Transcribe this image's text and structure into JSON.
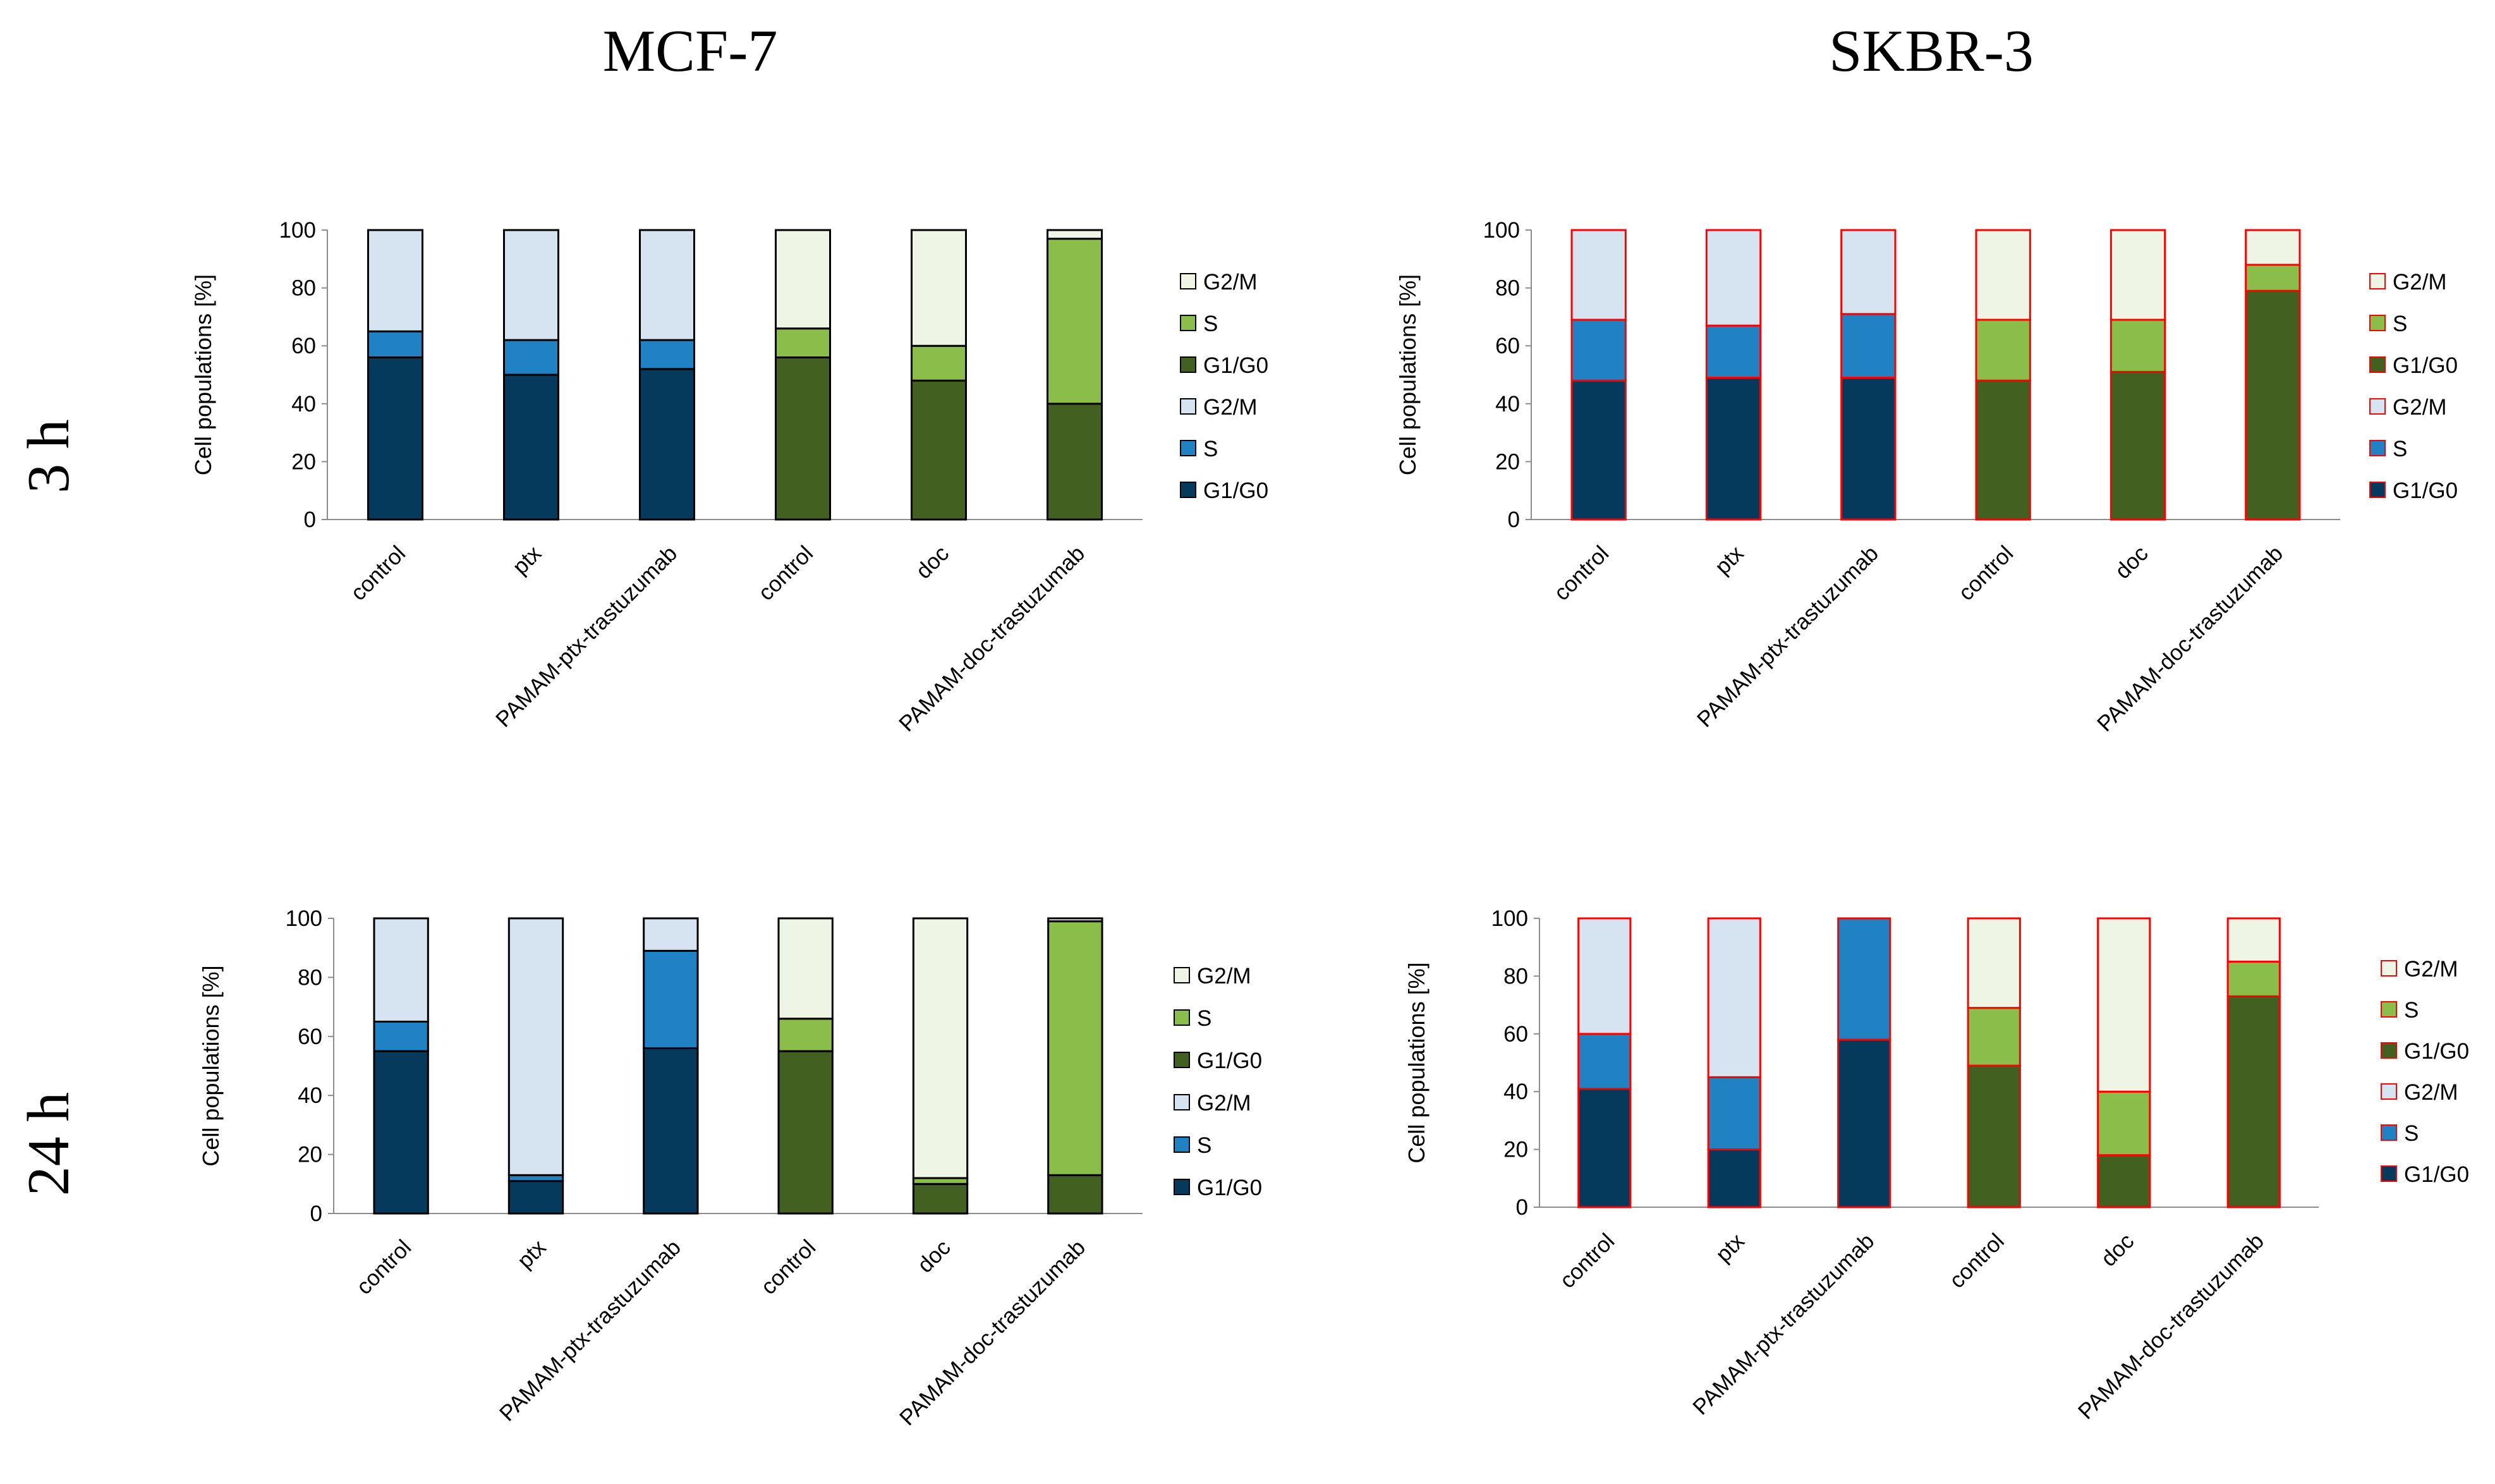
{
  "column_titles": [
    "MCF-7",
    "SKBR-3"
  ],
  "row_titles": [
    "3 h",
    "24 h"
  ],
  "colors": {
    "ptx": {
      "G1/G0": "#063a5c",
      "S": "#2081c3",
      "G2/M": "#d6e4f1"
    },
    "doc": {
      "G1/G0": "#426120",
      "S": "#8bbd4a",
      "G2/M": "#eef5e4"
    },
    "stroke_mcf7": "#000000",
    "stroke_skbr3": "#ff0000"
  },
  "chart_data": [
    {
      "type": "bar",
      "stacked": true,
      "cell_line": "MCF-7",
      "time": "3 h",
      "ylabel": "Cell populations [%]",
      "ylim": [
        0,
        100
      ],
      "yticks": [
        0,
        20,
        40,
        60,
        80,
        100
      ],
      "categories": [
        "control",
        "ptx",
        "PAMAM-ptx-trastuzumab",
        "control",
        "doc",
        "PAMAM-doc-trastuzumab"
      ],
      "bar_groups": [
        "ptx",
        "ptx",
        "ptx",
        "doc",
        "doc",
        "doc"
      ],
      "series": [
        {
          "name": "G1/G0",
          "values": [
            56,
            50,
            52,
            56,
            48,
            40
          ]
        },
        {
          "name": "S",
          "values": [
            9,
            12,
            10,
            10,
            12,
            57
          ]
        },
        {
          "name": "G2/M",
          "values": [
            35,
            38,
            38,
            34,
            40,
            3
          ]
        }
      ],
      "legend": [
        {
          "label": "G2/M",
          "group": "doc",
          "series": "G2/M"
        },
        {
          "label": "S",
          "group": "doc",
          "series": "S"
        },
        {
          "label": "G1/G0",
          "group": "doc",
          "series": "G1/G0"
        },
        {
          "label": "G2/M",
          "group": "ptx",
          "series": "G2/M"
        },
        {
          "label": "S",
          "group": "ptx",
          "series": "S"
        },
        {
          "label": "G1/G0",
          "group": "ptx",
          "series": "G1/G0"
        }
      ]
    },
    {
      "type": "bar",
      "stacked": true,
      "cell_line": "SKBR-3",
      "time": "3 h",
      "ylabel": "Cell populations [%]",
      "ylim": [
        0,
        100
      ],
      "yticks": [
        0,
        20,
        40,
        60,
        80,
        100
      ],
      "categories": [
        "control",
        "ptx",
        "PAMAM-ptx-trastuzumab",
        "control",
        "doc",
        "PAMAM-doc-trastuzumab"
      ],
      "bar_groups": [
        "ptx",
        "ptx",
        "ptx",
        "doc",
        "doc",
        "doc"
      ],
      "series": [
        {
          "name": "G1/G0",
          "values": [
            48,
            49,
            49,
            48,
            51,
            79
          ]
        },
        {
          "name": "S",
          "values": [
            21,
            18,
            22,
            21,
            18,
            9
          ]
        },
        {
          "name": "G2/M",
          "values": [
            31,
            33,
            29,
            31,
            31,
            12
          ]
        }
      ],
      "legend": [
        {
          "label": "G2/M",
          "group": "doc",
          "series": "G2/M"
        },
        {
          "label": "S",
          "group": "doc",
          "series": "S"
        },
        {
          "label": "G1/G0",
          "group": "doc",
          "series": "G1/G0"
        },
        {
          "label": "G2/M",
          "group": "ptx",
          "series": "G2/M"
        },
        {
          "label": "S",
          "group": "ptx",
          "series": "S"
        },
        {
          "label": "G1/G0",
          "group": "ptx",
          "series": "G1/G0"
        }
      ]
    },
    {
      "type": "bar",
      "stacked": true,
      "cell_line": "MCF-7",
      "time": "24 h",
      "ylabel": "Cell populations [%]",
      "ylim": [
        0,
        100
      ],
      "yticks": [
        0,
        20,
        40,
        60,
        80,
        100
      ],
      "categories": [
        "control",
        "ptx",
        "PAMAM-ptx-trastuzumab",
        "control",
        "doc",
        "PAMAM-doc-trastuzumab"
      ],
      "bar_groups": [
        "ptx",
        "ptx",
        "ptx",
        "doc",
        "doc",
        "doc"
      ],
      "series": [
        {
          "name": "G1/G0",
          "values": [
            55,
            11,
            56,
            55,
            10,
            13
          ]
        },
        {
          "name": "S",
          "values": [
            10,
            2,
            33,
            11,
            2,
            86
          ]
        },
        {
          "name": "G2/M",
          "values": [
            35,
            87,
            11,
            34,
            88,
            1
          ]
        }
      ],
      "legend": [
        {
          "label": "G2/M",
          "group": "doc",
          "series": "G2/M"
        },
        {
          "label": "S",
          "group": "doc",
          "series": "S"
        },
        {
          "label": "G1/G0",
          "group": "doc",
          "series": "G1/G0"
        },
        {
          "label": "G2/M",
          "group": "ptx",
          "series": "G2/M"
        },
        {
          "label": "S",
          "group": "ptx",
          "series": "S"
        },
        {
          "label": "G1/G0",
          "group": "ptx",
          "series": "G1/G0"
        }
      ]
    },
    {
      "type": "bar",
      "stacked": true,
      "cell_line": "SKBR-3",
      "time": "24 h",
      "ylabel": "Cell populations [%]",
      "ylim": [
        0,
        100
      ],
      "yticks": [
        0,
        20,
        40,
        60,
        80,
        100
      ],
      "categories": [
        "control",
        "ptx",
        "PAMAM-ptx-trastuzumab",
        "control",
        "doc",
        "PAMAM-doc-trastuzumab"
      ],
      "bar_groups": [
        "ptx",
        "ptx",
        "ptx",
        "doc",
        "doc",
        "doc"
      ],
      "series": [
        {
          "name": "G1/G0",
          "values": [
            41,
            20,
            58,
            49,
            18,
            73
          ]
        },
        {
          "name": "S",
          "values": [
            19,
            25,
            42,
            20,
            22,
            12
          ]
        },
        {
          "name": "G2/M",
          "values": [
            40,
            55,
            0,
            31,
            60,
            15
          ]
        }
      ],
      "legend": [
        {
          "label": "G2/M",
          "group": "doc",
          "series": "G2/M"
        },
        {
          "label": "S",
          "group": "doc",
          "series": "S"
        },
        {
          "label": "G1/G0",
          "group": "doc",
          "series": "G1/G0"
        },
        {
          "label": "G2/M",
          "group": "ptx",
          "series": "G2/M"
        },
        {
          "label": "S",
          "group": "ptx",
          "series": "S"
        },
        {
          "label": "G1/G0",
          "group": "ptx",
          "series": "G1/G0"
        }
      ]
    }
  ]
}
